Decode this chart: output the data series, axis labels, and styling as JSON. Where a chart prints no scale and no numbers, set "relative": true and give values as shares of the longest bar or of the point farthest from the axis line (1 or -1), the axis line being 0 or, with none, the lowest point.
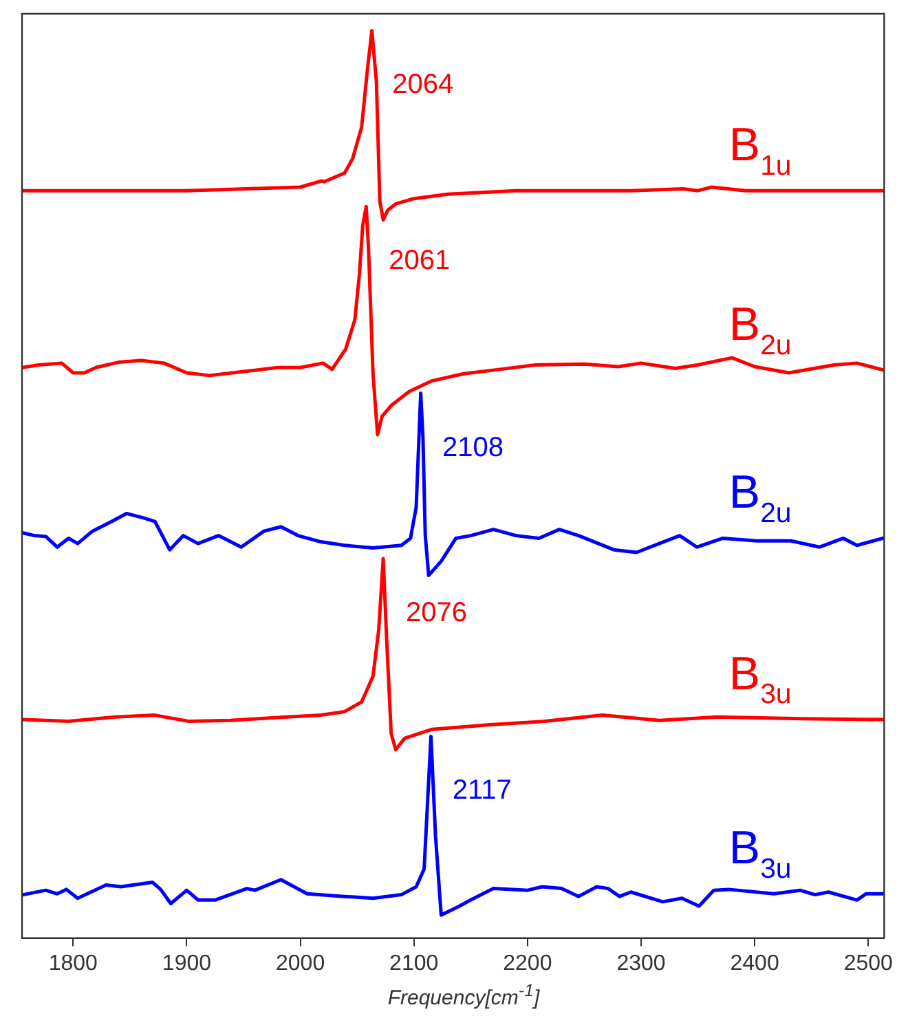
{
  "chart_data": {
    "type": "line",
    "relative": true,
    "xlabel": "Frequency[cm$^{-1}$]",
    "xlim": [
      1755,
      2514
    ],
    "xticks": [
      1800,
      1900,
      2000,
      2100,
      2200,
      2300,
      2400,
      2500
    ],
    "grid": false,
    "legend": false,
    "annotations": [
      {
        "text": "2064",
        "x": 2064,
        "y": 1.0
      },
      {
        "text": "2061",
        "x": 2061,
        "y": 0.801
      },
      {
        "text": "2108",
        "x": 2108,
        "y": 0.59
      },
      {
        "text": "2076",
        "x": 2076,
        "y": 0.403
      },
      {
        "text": "2117",
        "x": 2117,
        "y": 0.202
      }
    ],
    "series": [
      {
        "name": "B$_{1u}$",
        "color": "#ff0000",
        "x": [
          1755,
          1900,
          2000,
          2019,
          2021,
          2039,
          2046,
          2054,
          2059,
          2063,
          2067,
          2070,
          2073,
          2077,
          2084,
          2100,
          2130,
          2190,
          2291,
          2337,
          2350,
          2362,
          2392,
          2509,
          2514
        ],
        "values": [
          0.819,
          0.819,
          0.823,
          0.83,
          0.829,
          0.839,
          0.855,
          0.891,
          0.955,
          1.0,
          0.942,
          0.807,
          0.786,
          0.797,
          0.804,
          0.81,
          0.815,
          0.819,
          0.819,
          0.821,
          0.819,
          0.823,
          0.819,
          0.819,
          0.819
        ]
      },
      {
        "name": "B$_{2u}$",
        "color": "#ff0000",
        "x": [
          1755,
          1770,
          1790,
          1800,
          1810,
          1820,
          1840,
          1860,
          1880,
          1900,
          1920,
          1940,
          1960,
          1980,
          2000,
          2020,
          2028,
          2040,
          2048,
          2052,
          2055,
          2058,
          2060,
          2064,
          2068,
          2072,
          2080,
          2096,
          2116,
          2144,
          2176,
          2207,
          2250,
          2280,
          2300,
          2330,
          2350,
          2380,
          2400,
          2430,
          2470,
          2490,
          2514
        ],
        "values": [
          0.619,
          0.622,
          0.624,
          0.613,
          0.613,
          0.619,
          0.625,
          0.627,
          0.624,
          0.613,
          0.61,
          0.613,
          0.616,
          0.619,
          0.619,
          0.624,
          0.617,
          0.64,
          0.673,
          0.724,
          0.78,
          0.801,
          0.755,
          0.612,
          0.543,
          0.564,
          0.576,
          0.592,
          0.604,
          0.612,
          0.617,
          0.622,
          0.623,
          0.62,
          0.624,
          0.618,
          0.622,
          0.63,
          0.62,
          0.613,
          0.622,
          0.624,
          0.616
        ]
      },
      {
        "name": "B$_{2u}$",
        "color": "#0000ff",
        "x": [
          1756,
          1766,
          1776,
          1786,
          1796,
          1804,
          1817,
          1834,
          1847,
          1862,
          1872,
          1885,
          1897,
          1910,
          1928,
          1948,
          1968,
          1983,
          1998,
          2018,
          2039,
          2064,
          2089,
          2097,
          2102,
          2106,
          2108,
          2110,
          2113,
          2124,
          2137,
          2150,
          2170,
          2190,
          2210,
          2228,
          2245,
          2276,
          2296,
          2316,
          2334,
          2349,
          2372,
          2402,
          2432,
          2457,
          2478,
          2490,
          2513
        ],
        "values": [
          0.432,
          0.429,
          0.428,
          0.416,
          0.426,
          0.42,
          0.434,
          0.445,
          0.454,
          0.449,
          0.445,
          0.413,
          0.429,
          0.42,
          0.429,
          0.416,
          0.434,
          0.439,
          0.429,
          0.422,
          0.418,
          0.415,
          0.418,
          0.426,
          0.461,
          0.59,
          0.539,
          0.429,
          0.384,
          0.4,
          0.426,
          0.429,
          0.436,
          0.429,
          0.426,
          0.436,
          0.429,
          0.413,
          0.41,
          0.42,
          0.429,
          0.416,
          0.426,
          0.423,
          0.423,
          0.416,
          0.426,
          0.418,
          0.426
        ]
      },
      {
        "name": "B$_{3u}$",
        "color": "#ff0000",
        "x": [
          1756,
          1796,
          1837,
          1872,
          1902,
          1938,
          1988,
          2018,
          2039,
          2054,
          2064,
          2069,
          2073,
          2076,
          2080,
          2084,
          2092,
          2116,
          2165,
          2215,
          2266,
          2316,
          2367,
          2442,
          2513
        ],
        "values": [
          0.221,
          0.219,
          0.224,
          0.226,
          0.219,
          0.22,
          0.224,
          0.226,
          0.23,
          0.241,
          0.27,
          0.322,
          0.403,
          0.312,
          0.205,
          0.187,
          0.2,
          0.21,
          0.215,
          0.219,
          0.226,
          0.22,
          0.224,
          0.222,
          0.221
        ]
      },
      {
        "name": "B$_{3u}$",
        "color": "#0000ff",
        "x": [
          1756,
          1776,
          1786,
          1794,
          1804,
          1829,
          1842,
          1870,
          1877,
          1886,
          1900,
          1910,
          1925,
          1938,
          1953,
          1960,
          1983,
          2006,
          2039,
          2064,
          2089,
          2102,
          2109,
          2115,
          2119,
          2124,
          2140,
          2150,
          2170,
          2200,
          2213,
          2230,
          2245,
          2261,
          2271,
          2281,
          2291,
          2319,
          2336,
          2351,
          2364,
          2377,
          2417,
          2440,
          2453,
          2465,
          2490,
          2498,
          2513
        ],
        "values": [
          0.023,
          0.028,
          0.024,
          0.029,
          0.019,
          0.034,
          0.032,
          0.037,
          0.029,
          0.013,
          0.028,
          0.017,
          0.017,
          0.023,
          0.03,
          0.028,
          0.04,
          0.024,
          0.021,
          0.019,
          0.023,
          0.032,
          0.052,
          0.202,
          0.09,
          0.0,
          0.01,
          0.017,
          0.03,
          0.028,
          0.032,
          0.03,
          0.021,
          0.032,
          0.03,
          0.021,
          0.026,
          0.015,
          0.019,
          0.01,
          0.028,
          0.029,
          0.024,
          0.028,
          0.023,
          0.026,
          0.017,
          0.024,
          0.024
        ]
      }
    ]
  }
}
